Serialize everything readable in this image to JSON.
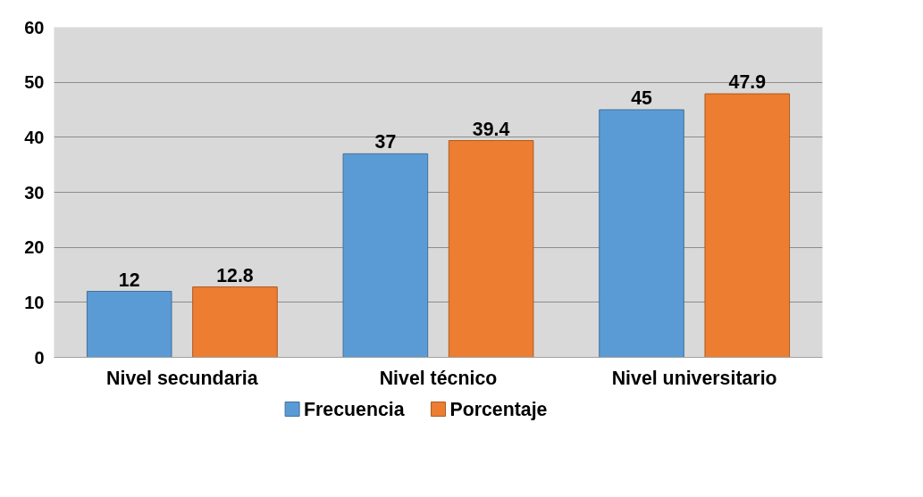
{
  "chart_data": {
    "type": "bar",
    "categories": [
      "Nivel secundaria",
      "Nivel técnico",
      "Nivel universitario"
    ],
    "series": [
      {
        "name": "Frecuencia",
        "color": "#5b9bd5",
        "values": [
          12,
          37,
          45
        ]
      },
      {
        "name": "Porcentaje",
        "color": "#ed7d31",
        "values": [
          12.8,
          39.4,
          47.9
        ]
      }
    ],
    "ylim": [
      0,
      60
    ],
    "yticks": [
      0,
      10,
      20,
      30,
      40,
      50,
      60
    ],
    "grid": "y",
    "legend": "bottom",
    "data_labels": true
  }
}
